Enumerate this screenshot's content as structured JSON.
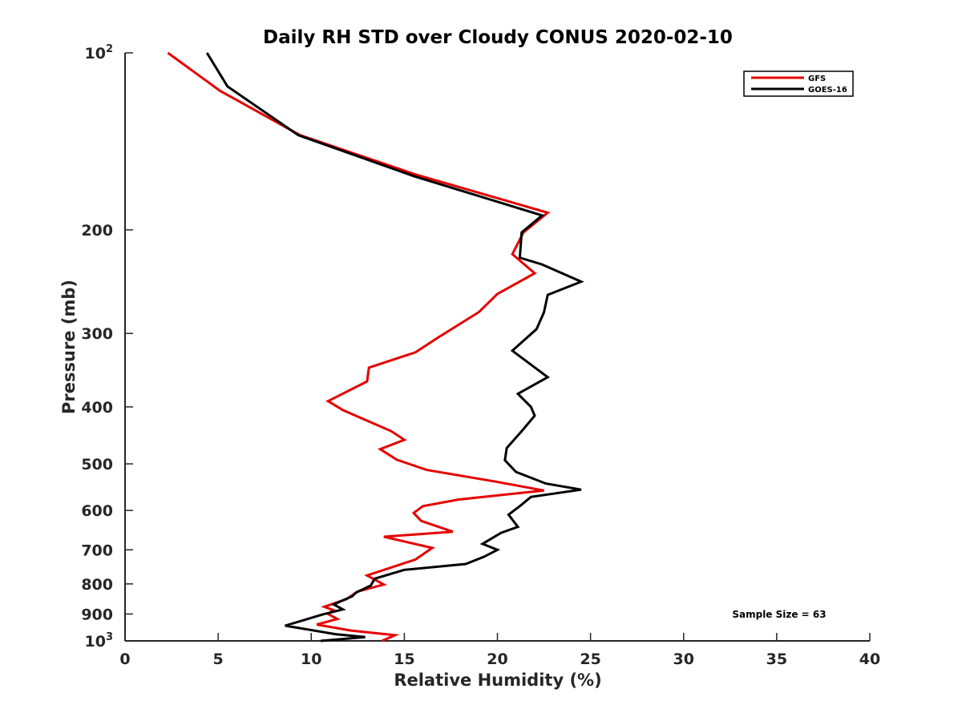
{
  "chart_data": {
    "type": "line",
    "title": "Daily RH STD over Cloudy CONUS 2020-02-10",
    "xlabel": "Relative Humidity (%)",
    "ylabel": "Pressure (mb)",
    "xlim": [
      0,
      40
    ],
    "ylim": [
      100,
      1000
    ],
    "y_scale": "log",
    "y_reversed": true,
    "x_ticks": [
      0,
      5,
      10,
      15,
      20,
      25,
      30,
      35,
      40
    ],
    "y_ticks": [
      {
        "value": 100,
        "base": "10",
        "exp": "2"
      },
      {
        "value": 200,
        "label": "200"
      },
      {
        "value": 300,
        "label": "300"
      },
      {
        "value": 400,
        "label": "400"
      },
      {
        "value": 500,
        "label": "500"
      },
      {
        "value": 600,
        "label": "600"
      },
      {
        "value": 700,
        "label": "700"
      },
      {
        "value": 800,
        "label": "800"
      },
      {
        "value": 900,
        "label": "900"
      },
      {
        "value": 1000,
        "base": "10",
        "exp": "3"
      }
    ],
    "grid": false,
    "legend": "top-right",
    "series": [
      {
        "name": "GFS",
        "color": "#e60000",
        "points": [
          [
            2.3,
            100
          ],
          [
            5.1,
            116
          ],
          [
            9.4,
            138
          ],
          [
            15.6,
            161
          ],
          [
            22.7,
            187
          ],
          [
            21.4,
            202
          ],
          [
            20.8,
            220
          ],
          [
            22.0,
            237
          ],
          [
            20.0,
            257
          ],
          [
            19.0,
            276
          ],
          [
            16.8,
            305
          ],
          [
            15.6,
            323
          ],
          [
            13.1,
            343
          ],
          [
            13.0,
            362
          ],
          [
            10.9,
            391
          ],
          [
            11.7,
            405
          ],
          [
            14.3,
            440
          ],
          [
            15.0,
            455
          ],
          [
            13.7,
            472
          ],
          [
            14.6,
            492
          ],
          [
            16.2,
            512
          ],
          [
            19.9,
            536
          ],
          [
            22.5,
            555
          ],
          [
            17.9,
            575
          ],
          [
            16.0,
            590
          ],
          [
            15.5,
            606
          ],
          [
            15.9,
            625
          ],
          [
            17.6,
            652
          ],
          [
            13.9,
            665
          ],
          [
            16.5,
            695
          ],
          [
            15.6,
            727
          ],
          [
            13.0,
            774
          ],
          [
            13.9,
            802
          ],
          [
            12.5,
            824
          ],
          [
            11.9,
            849
          ],
          [
            10.7,
            875
          ],
          [
            11.2,
            887
          ],
          [
            10.9,
            900
          ],
          [
            11.4,
            918
          ],
          [
            10.3,
            938
          ],
          [
            12.1,
            960
          ],
          [
            14.5,
            978
          ],
          [
            13.8,
            1000
          ]
        ]
      },
      {
        "name": "GOES-16",
        "color": "#000000",
        "points": [
          [
            4.4,
            100
          ],
          [
            5.5,
            114
          ],
          [
            9.3,
            138
          ],
          [
            15.5,
            162
          ],
          [
            22.4,
            189
          ],
          [
            21.3,
            202
          ],
          [
            21.2,
            223
          ],
          [
            22.4,
            229
          ],
          [
            24.5,
            245
          ],
          [
            22.7,
            258
          ],
          [
            22.5,
            276
          ],
          [
            22.1,
            295
          ],
          [
            20.8,
            321
          ],
          [
            22.7,
            356
          ],
          [
            21.1,
            380
          ],
          [
            21.8,
            400
          ],
          [
            22.0,
            414
          ],
          [
            21.3,
            440
          ],
          [
            20.5,
            470
          ],
          [
            20.4,
            493
          ],
          [
            21.0,
            516
          ],
          [
            22.6,
            540
          ],
          [
            24.5,
            553
          ],
          [
            21.8,
            569
          ],
          [
            21.2,
            590
          ],
          [
            20.6,
            610
          ],
          [
            21.1,
            640
          ],
          [
            20.2,
            655
          ],
          [
            19.2,
            684
          ],
          [
            20.0,
            700
          ],
          [
            19.3,
            719
          ],
          [
            18.3,
            740
          ],
          [
            15.0,
            757
          ],
          [
            13.4,
            784
          ],
          [
            13.2,
            805
          ],
          [
            12.4,
            828
          ],
          [
            12.2,
            840
          ],
          [
            11.2,
            867
          ],
          [
            11.7,
            884
          ],
          [
            10.6,
            902
          ],
          [
            8.6,
            942
          ],
          [
            11.3,
            974
          ],
          [
            12.9,
            985
          ],
          [
            10.5,
            1000
          ]
        ]
      }
    ],
    "annotations": [
      "Sample Size = 63"
    ]
  }
}
